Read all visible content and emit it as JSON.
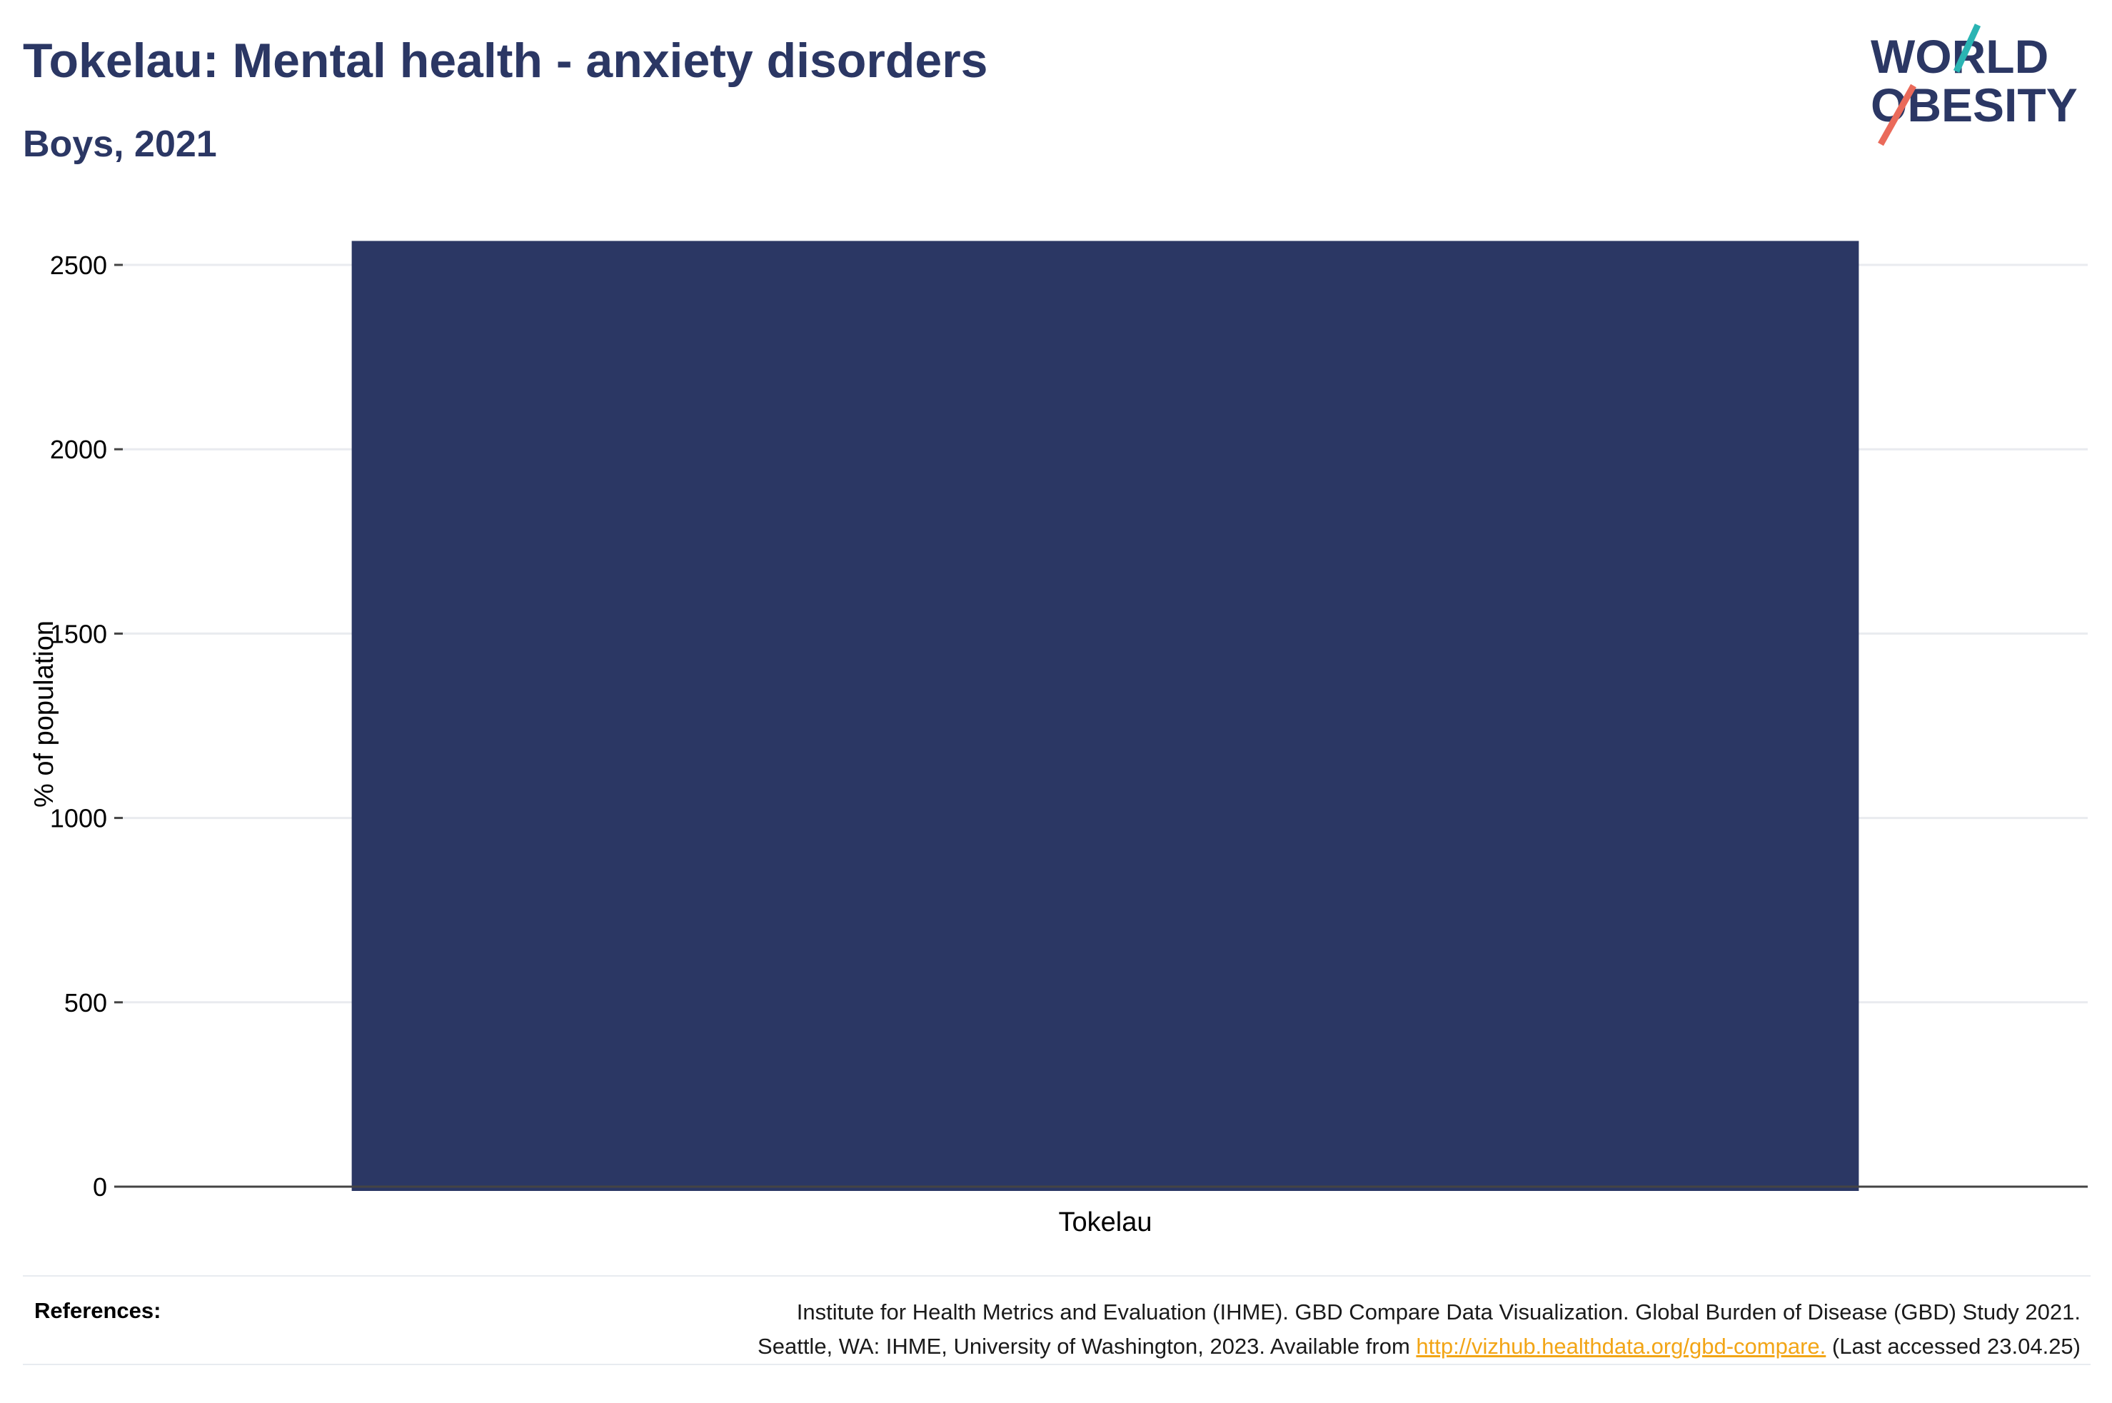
{
  "header": {
    "title": "Tokelau: Mental health - anxiety disorders",
    "subtitle": "Boys, 2021"
  },
  "logo": {
    "line1": "WORLD",
    "line2": "OBESITY",
    "colors": {
      "text": "#2b3764",
      "teal": "#2ab4b3",
      "coral": "#ea6a5a"
    }
  },
  "chart_data": {
    "type": "bar",
    "title": "Tokelau: Mental health - anxiety disorders",
    "subtitle": "Boys, 2021",
    "categories": [
      "Tokelau"
    ],
    "values": [
      2565
    ],
    "xlabel": "",
    "ylabel": "% of population",
    "ylim": [
      0,
      2600
    ],
    "yticks": [
      0,
      500,
      1000,
      1500,
      2000,
      2500
    ],
    "grid": true,
    "legend": "none",
    "bar_color": "#2b3764"
  },
  "references": {
    "label": "References:",
    "line1": "Institute for Health Metrics and Evaluation (IHME). GBD Compare Data Visualization. Global Burden of Disease (GBD) Study 2021.",
    "line2_prefix": "Seattle, WA: IHME, University of Washington, 2023. Available from ",
    "link": "http://vizhub.healthdata.org/gbd-compare.",
    "line2_suffix": " (Last accessed 23.04.25)"
  }
}
